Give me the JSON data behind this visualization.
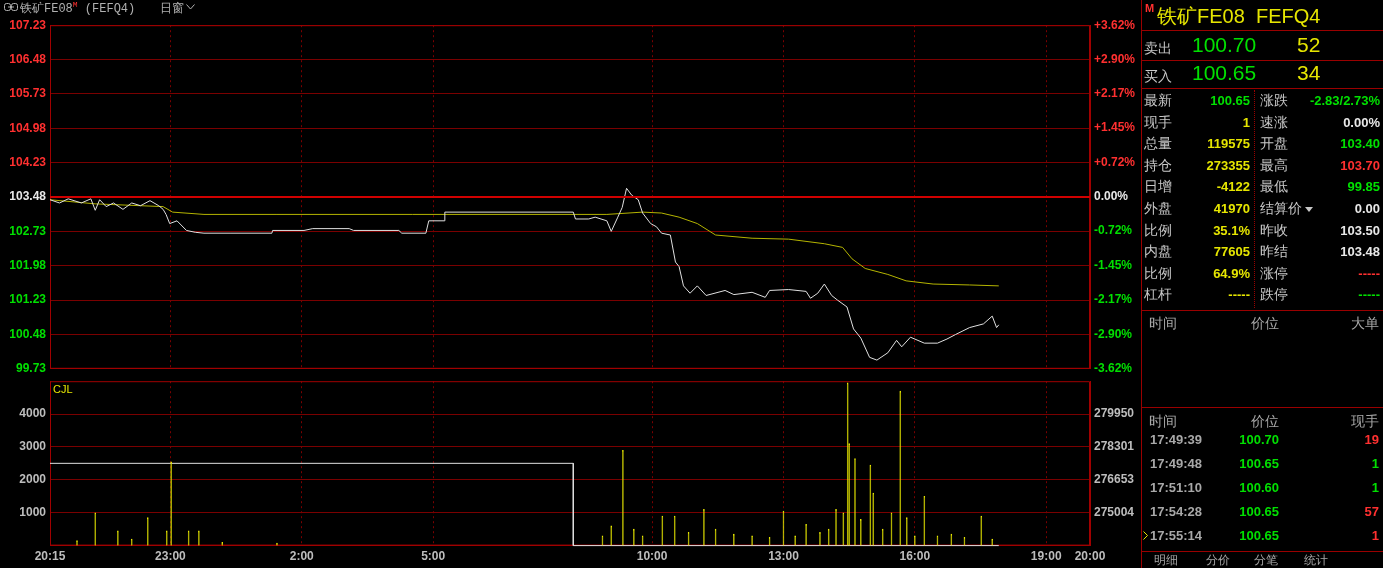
{
  "chart_data": [
    {
      "type": "line",
      "title": "铁矿FE08$^{M}$ (FEFQ4)",
      "annotations": [
        "日窗"
      ],
      "xlim": [
        "--07-01T20:15",
        "--07-02T20:00"
      ],
      "xticks": [
        {
          "value": "--07-01T20:15",
          "label": null
        },
        {
          "value": "--07-01T23:00",
          "label": null
        },
        {
          "value": "--07-02T02:00",
          "label": null
        },
        {
          "value": "--07-02T05:00",
          "label": null
        },
        {
          "value": "--07-02T10:00",
          "label": null
        },
        {
          "value": "--07-02T13:00",
          "label": null
        },
        {
          "value": "--07-02T16:00",
          "label": null
        },
        {
          "value": "--07-02T19:00",
          "label": null
        },
        {
          "value": "--07-02T20:00",
          "label": null
        }
      ],
      "ylim": [
        99.73,
        107.23
      ],
      "yticks": [
        99.73,
        100.48,
        101.23,
        101.98,
        102.73,
        103.48,
        104.23,
        104.98,
        105.73,
        106.48,
        107.23
      ],
      "y2lim": [
        -3.62,
        3.62
      ],
      "y2ticks": [
        {
          "value": -3.62,
          "label": "-3.62%"
        },
        {
          "value": -2.9,
          "label": "-2.90%"
        },
        {
          "value": -2.17,
          "label": "-2.17%"
        },
        {
          "value": -1.45,
          "label": "-1.45%"
        },
        {
          "value": -0.72,
          "label": "-0.72%"
        },
        {
          "value": 0,
          "label": "0.00%"
        },
        {
          "value": 0.72,
          "label": "+0.72%"
        },
        {
          "value": 1.45,
          "label": "+1.45%"
        },
        {
          "value": 2.17,
          "label": "+2.17%"
        },
        {
          "value": 2.9,
          "label": "+2.90%"
        },
        {
          "value": 3.62,
          "label": "+3.62%"
        }
      ],
      "ref_lines": [
        {
          "axis": "y",
          "value": 103.48,
          "color": "#d00000"
        }
      ],
      "grid": true,
      "legend": false,
      "tick_labels": "y",
      "series": [
        {
          "color": "#e0e0e0",
          "x": [
            "--07-01T20:15",
            "--07-01T20:28",
            "--07-01T20:40",
            "--07-01T20:58",
            "--07-01T21:11",
            "--07-01T21:17",
            "--07-01T21:23",
            "--07-01T21:32",
            "--07-01T21:42",
            "--07-01T21:55",
            "--07-01T22:07",
            "--07-01T22:19",
            "--07-01T22:32",
            "--07-01T22:44",
            "--07-01T22:50",
            "--07-01T22:54",
            "--07-01T22:59",
            "--07-01T23:09",
            "--07-01T23:22",
            "--07-01T23:34",
            "--07-01T23:46",
            "--07-02T00:23",
            "--07-02T01:19",
            "--07-02T01:20",
            "--07-02T02:03",
            "--07-02T02:15",
            "--07-02T03:05",
            "--07-02T03:11",
            "--07-02T04:13",
            "--07-02T04:17",
            "--07-02T04:50",
            "--07-02T04:54",
            "--07-02T05:15",
            "--07-02T05:16",
            "--07-02T08:12",
            "--07-02T08:15",
            "--07-02T08:33",
            "--07-02T08:42",
            "--07-02T08:58",
            "--07-02T09:04",
            "--07-02T09:13",
            "--07-02T09:19",
            "--07-02T09:25",
            "--07-02T09:32",
            "--07-02T09:41",
            "--07-02T09:47",
            "--07-02T09:58",
            "--07-02T10:06",
            "--07-02T10:13",
            "--07-02T10:25",
            "--07-02T10:32",
            "--07-02T10:37",
            "--07-02T10:43",
            "--07-02T10:52",
            "--07-02T11:02",
            "--07-02T11:14",
            "--07-02T11:40",
            "--07-02T11:52",
            "--07-02T12:17",
            "--07-02T12:35",
            "--07-02T12:41",
            "--07-02T13:07",
            "--07-02T13:31",
            "--07-02T13:37",
            "--07-02T13:47",
            "--07-02T13:56",
            "--07-02T14:06",
            "--07-02T14:14",
            "--07-02T14:27",
            "--07-02T14:36",
            "--07-02T14:46",
            "--07-02T14:58",
            "--07-02T15:08",
            "--07-02T15:23",
            "--07-02T15:35",
            "--07-02T15:42",
            "--07-02T15:54",
            "--07-02T16:13",
            "--07-02T16:31",
            "--07-02T16:44",
            "--07-02T16:56",
            "--07-02T17:15",
            "--07-02T17:34",
            "--07-02T17:46",
            "--07-02T17:52",
            "--07-02T17:55"
          ],
          "values": [
            103.42,
            103.35,
            103.44,
            103.35,
            103.44,
            103.19,
            103.42,
            103.27,
            103.35,
            103.21,
            103.35,
            103.29,
            103.4,
            103.29,
            103.21,
            103.1,
            102.9,
            102.96,
            102.75,
            102.71,
            102.69,
            102.69,
            102.69,
            102.75,
            102.75,
            102.79,
            102.79,
            102.75,
            102.75,
            102.69,
            102.69,
            102.96,
            102.96,
            103.15,
            103.15,
            103.0,
            103.0,
            103.04,
            102.96,
            102.73,
            103.04,
            103.25,
            103.67,
            103.52,
            103.42,
            103.13,
            102.9,
            102.83,
            102.69,
            102.65,
            102.06,
            101.96,
            101.54,
            101.38,
            101.54,
            101.33,
            101.44,
            101.35,
            101.4,
            101.29,
            101.44,
            101.46,
            101.42,
            101.27,
            101.38,
            101.58,
            101.33,
            101.23,
            101.08,
            100.6,
            100.4,
            99.98,
            99.92,
            100.08,
            100.35,
            100.21,
            100.42,
            100.29,
            100.29,
            100.38,
            100.48,
            100.63,
            100.71,
            100.88,
            100.63,
            100.69
          ]
        },
        {
          "color": "#b4b400",
          "x": [
            "--07-01T20:15",
            "--07-01T21:17",
            "--07-01T22:50",
            "--07-01T23:03",
            "--07-01T23:46",
            "--07-02T01:26",
            "--07-02T04:32",
            "--07-02T08:58",
            "--07-02T09:47",
            "--07-02T10:13",
            "--07-02T10:37",
            "--07-02T11:02",
            "--07-02T11:27",
            "--07-02T12:17",
            "--07-02T13:07",
            "--07-02T13:56",
            "--07-02T14:21",
            "--07-02T14:34",
            "--07-02T14:52",
            "--07-02T15:23",
            "--07-02T15:48",
            "--07-02T16:25",
            "--07-02T17:15",
            "--07-02T17:55"
          ],
          "values": [
            103.42,
            103.33,
            103.27,
            103.15,
            103.1,
            103.1,
            103.1,
            103.1,
            103.15,
            103.13,
            103.04,
            102.9,
            102.65,
            102.58,
            102.56,
            102.46,
            102.38,
            102.13,
            101.92,
            101.79,
            101.65,
            101.58,
            101.56,
            101.54
          ]
        }
      ]
    },
    {
      "type": "bar",
      "title": "CJL",
      "xlim": [
        "--07-01T20:15",
        "--07-02T20:00"
      ],
      "xticks": [
        {
          "value": "--07-01T20:15",
          "label": "20:15"
        },
        {
          "value": "--07-01T23:00",
          "label": "23:00"
        },
        {
          "value": "--07-02T02:00",
          "label": "2:00"
        },
        {
          "value": "--07-02T05:00",
          "label": "5:00"
        },
        {
          "value": "--07-02T10:00",
          "label": "10:00"
        },
        {
          "value": "--07-02T13:00",
          "label": "13:00"
        },
        {
          "value": "--07-02T16:00",
          "label": "16:00"
        },
        {
          "value": "--07-02T19:00",
          "label": "19:00"
        },
        {
          "value": "--07-02T20:00",
          "label": "20:00"
        }
      ],
      "ylim": [
        0,
        5000
      ],
      "yticks": [
        1000,
        2000,
        3000,
        4000
      ],
      "y2lim": [
        273355,
        281598
      ],
      "y2ticks": [
        275004,
        276653,
        278301,
        279950
      ],
      "grid": true,
      "legend": false,
      "series": [
        {
          "color": "#e6e600",
          "x": [
            "--07-01T20:52",
            "--07-01T21:17",
            "--07-01T21:48",
            "--07-01T22:07",
            "--07-01T22:29",
            "--07-01T22:55",
            "--07-01T23:01",
            "--07-01T23:25",
            "--07-01T23:39",
            "--07-02T00:11",
            "--07-02T01:26",
            "--07-02T08:52",
            "--07-02T09:04",
            "--07-02T09:20",
            "--07-02T09:35",
            "--07-02T09:47",
            "--07-02T10:14",
            "--07-02T10:31",
            "--07-02T10:50",
            "--07-02T11:11",
            "--07-02T11:27",
            "--07-02T11:52",
            "--07-02T12:17",
            "--07-02T12:41",
            "--07-02T13:00",
            "--07-02T13:16",
            "--07-02T13:31",
            "--07-02T13:50",
            "--07-02T14:02",
            "--07-02T14:12",
            "--07-02T14:22",
            "--07-02T14:28",
            "--07-02T14:30",
            "--07-02T14:38",
            "--07-02T14:46",
            "--07-02T14:59",
            "--07-02T15:03",
            "--07-02T15:16",
            "--07-02T15:28",
            "--07-02T15:40",
            "--07-02T15:49",
            "--07-02T16:00",
            "--07-02T16:13",
            "--07-02T16:31",
            "--07-02T16:50",
            "--07-02T17:08",
            "--07-02T17:31",
            "--07-02T17:46"
          ],
          "values": [
            150,
            1000,
            450,
            200,
            850,
            450,
            2550,
            450,
            450,
            100,
            80,
            300,
            600,
            2900,
            500,
            300,
            900,
            900,
            400,
            1100,
            500,
            350,
            300,
            250,
            1050,
            300,
            650,
            400,
            500,
            1100,
            1000,
            4950,
            3100,
            2650,
            800,
            2450,
            1600,
            500,
            1000,
            4700,
            850,
            300,
            1500,
            300,
            350,
            250,
            900,
            200
          ]
        },
        {
          "type": "line",
          "axis": "y2",
          "color": "#e0e0e0",
          "x": [
            "--07-01T20:15",
            "--07-02T08:12",
            "--07-02T08:12",
            "--07-02T17:55"
          ],
          "values": [
            277480,
            277480,
            273355,
            273355
          ]
        }
      ]
    },
    {
      "type": "other",
      "title": "铁矿FE08  FEFQ4",
      "annotations": [
        "M",
        "卖出",
        "100.70",
        "52",
        "买入",
        "100.65",
        "34",
        "最新",
        "100.65",
        "涨跌",
        "-2.83/2.73%",
        "现手",
        "1",
        "速涨",
        "0.00%",
        "总量",
        "119575",
        "开盘",
        "103.40",
        "持仓",
        "273355",
        "最高",
        "103.70",
        "日增",
        "-4122",
        "最低",
        "99.85",
        "外盘",
        "41970",
        "结算价",
        "0.00",
        "比例",
        "35.1%",
        "昨收",
        "103.50",
        "内盘",
        "77605",
        "昨结",
        "103.48",
        "比例",
        "64.9%",
        "涨停",
        "-----",
        "杠杆",
        "-----",
        "跌停",
        "-----",
        "时间",
        "价位",
        "大单",
        "时间",
        "价位",
        "现手",
        "17:49:39",
        "100.70",
        "19",
        "17:49:48",
        "100.65",
        "1",
        "17:51:10",
        "100.60",
        "1",
        "17:54:28",
        "100.65",
        "57",
        "17:55:14",
        "100.65",
        "1",
        "明细",
        "分价",
        "分笔",
        "统计"
      ]
    }
  ]
}
